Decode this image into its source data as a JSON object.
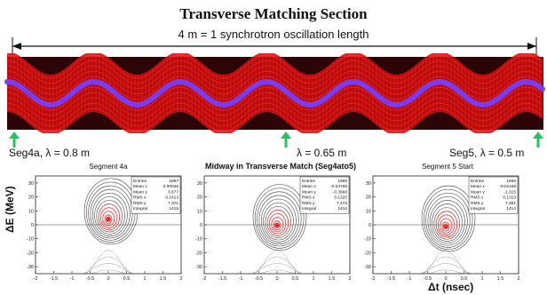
{
  "title": "Transverse Matching Section",
  "subtitle": "4 m = 1 synchrotron oscillation length",
  "markers": [
    {
      "label": "Seg4a, λ = 0.8 m"
    },
    {
      "label": "λ = 0.65 m"
    },
    {
      "label": "Seg5, λ = 0.5 m"
    }
  ],
  "colors": {
    "band_bg": "#2a0606",
    "band_red": "#e01010",
    "wave": "#7a3cf0",
    "arrow": "#22c55e",
    "contour_core": "#e03030"
  },
  "y_axis_label": "ΔE (MeV)",
  "x_axis_label": "Δt (nsec)",
  "panels": [
    {
      "title": "Segment 4a",
      "stats": [
        [
          "Entries",
          "1667"
        ],
        [
          "Mean x",
          "0.00046"
        ],
        [
          "Mean y",
          "3.877"
        ],
        [
          "RMS x",
          "0.1413"
        ],
        [
          "RMS y",
          "7.371"
        ],
        [
          "Integral",
          "1415"
        ]
      ],
      "yticks": [
        "30",
        "20",
        "10",
        "0",
        "-10",
        "-20",
        "-30"
      ],
      "xticks": [
        "-2",
        "-1.5",
        "-1",
        "-0.5",
        "0",
        "0.5",
        "1",
        "1.5",
        "2"
      ]
    },
    {
      "title": "Midway in Transverse Match (Seg4ato5)",
      "stats": [
        [
          "Entries",
          "1660"
        ],
        [
          "Mean x",
          "-0.03766"
        ],
        [
          "Mean y",
          "-0.3668"
        ],
        [
          "RMS x",
          "0.1325"
        ],
        [
          "RMS y",
          "7.473"
        ],
        [
          "Integral",
          "1416"
        ]
      ],
      "yticks": [
        "30",
        "20",
        "10",
        "0",
        "-10",
        "-20",
        "-30"
      ],
      "xticks": [
        "-2",
        "-1.5",
        "-1",
        "-0.5",
        "0",
        "0.5",
        "1",
        "1.5",
        "2"
      ]
    },
    {
      "title": "Segment 5 Start",
      "stats": [
        [
          "Entries",
          "1666"
        ],
        [
          "Mean x",
          "-0.01169"
        ],
        [
          "Mean y",
          "-1.315"
        ],
        [
          "RMS x",
          "0.1313"
        ],
        [
          "RMS y",
          "7.381"
        ],
        [
          "Integral",
          "1414"
        ]
      ],
      "yticks": [
        "30",
        "20",
        "10",
        "0",
        "-10",
        "-20",
        "-30"
      ],
      "xticks": [
        "-2",
        "-1.5",
        "-1",
        "-0.5",
        "0",
        "0.5",
        "1",
        "1.5",
        "2"
      ]
    }
  ]
}
